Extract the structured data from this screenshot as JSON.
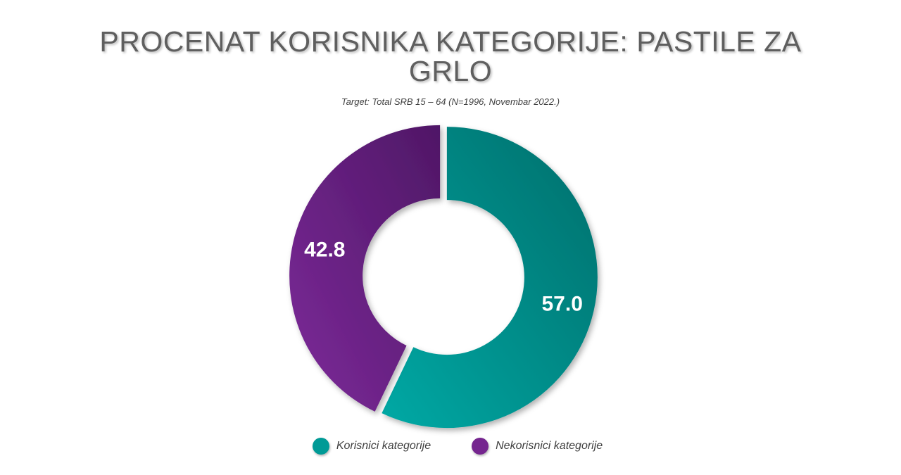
{
  "title": "PROCENAT KORISNIKA KATEGORIJE: PASTILE ZA GRLO",
  "subtitle": "Target: Total SRB 15 – 64 (N=1996, Novembar 2022.)",
  "chart_data": {
    "type": "pie",
    "variant": "donut",
    "title": "PROCENAT KORISNIKA KATEGORIJE: PASTILE ZA GRLO",
    "subtitle": "Target: Total SRB 15 – 64 (N=1996, Novembar 2022.)",
    "categories": [
      "Korisnici kategorije",
      "Nekorisnici kategorije"
    ],
    "values": [
      57.0,
      42.8
    ],
    "labels": [
      "57.0",
      "42.8"
    ],
    "colors": [
      "#00908c",
      "#6f2287"
    ],
    "legend": "bottom"
  }
}
